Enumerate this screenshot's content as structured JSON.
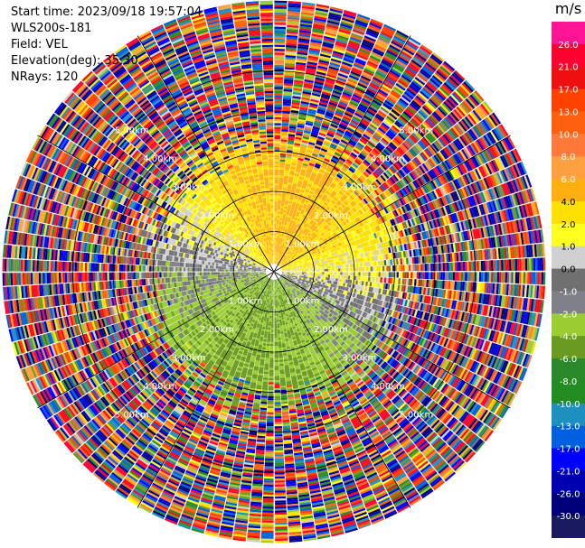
{
  "header": {
    "start_time": "Start time: 2023/09/18 19:57:04",
    "instrument": "WLS200s-181",
    "field": "Field: VEL",
    "elevation": "Elevation(deg): 35.30",
    "nrays": "NRays: 120"
  },
  "colorbar": {
    "unit": "m/s",
    "ticks": [
      "26.0",
      "21.0",
      "17.0",
      "13.0",
      "10.0",
      "8.0",
      "6.0",
      "4.0",
      "2.0",
      "1.0",
      "0.0",
      "-1.0",
      "-2.0",
      "-4.0",
      "-6.0",
      "-8.0",
      "-10.0",
      "-13.0",
      "-17.0",
      "-21.0",
      "-26.0",
      "-30.0"
    ],
    "colors": [
      "#ff1493",
      "#ff0030",
      "#ee1010",
      "#ff4000",
      "#ff6010",
      "#ff7a3a",
      "#ffa040",
      "#ffb010",
      "#ffe000",
      "#ffff20",
      "#d0d0d0",
      "#707070",
      "#80808a",
      "#9acd32",
      "#6a9a20",
      "#2a8a2a",
      "#228b22",
      "#1e90c0",
      "#0060e0",
      "#0000ff",
      "#0000b0",
      "#00007a",
      "#1a1a60"
    ]
  },
  "chart_data": {
    "type": "heatmap",
    "projection": "polar PPI",
    "field": "VEL",
    "units": "m/s",
    "range_rings_km": [
      1.0,
      2.0,
      3.0,
      4.0,
      5.0
    ],
    "range_labels": [
      "1.00km",
      "2.00km",
      "3.00km",
      "4.00km",
      "5.00km"
    ],
    "nrays": 120,
    "elevation_deg": 35.3,
    "value_range": [
      -30.0,
      26.0
    ]
  }
}
